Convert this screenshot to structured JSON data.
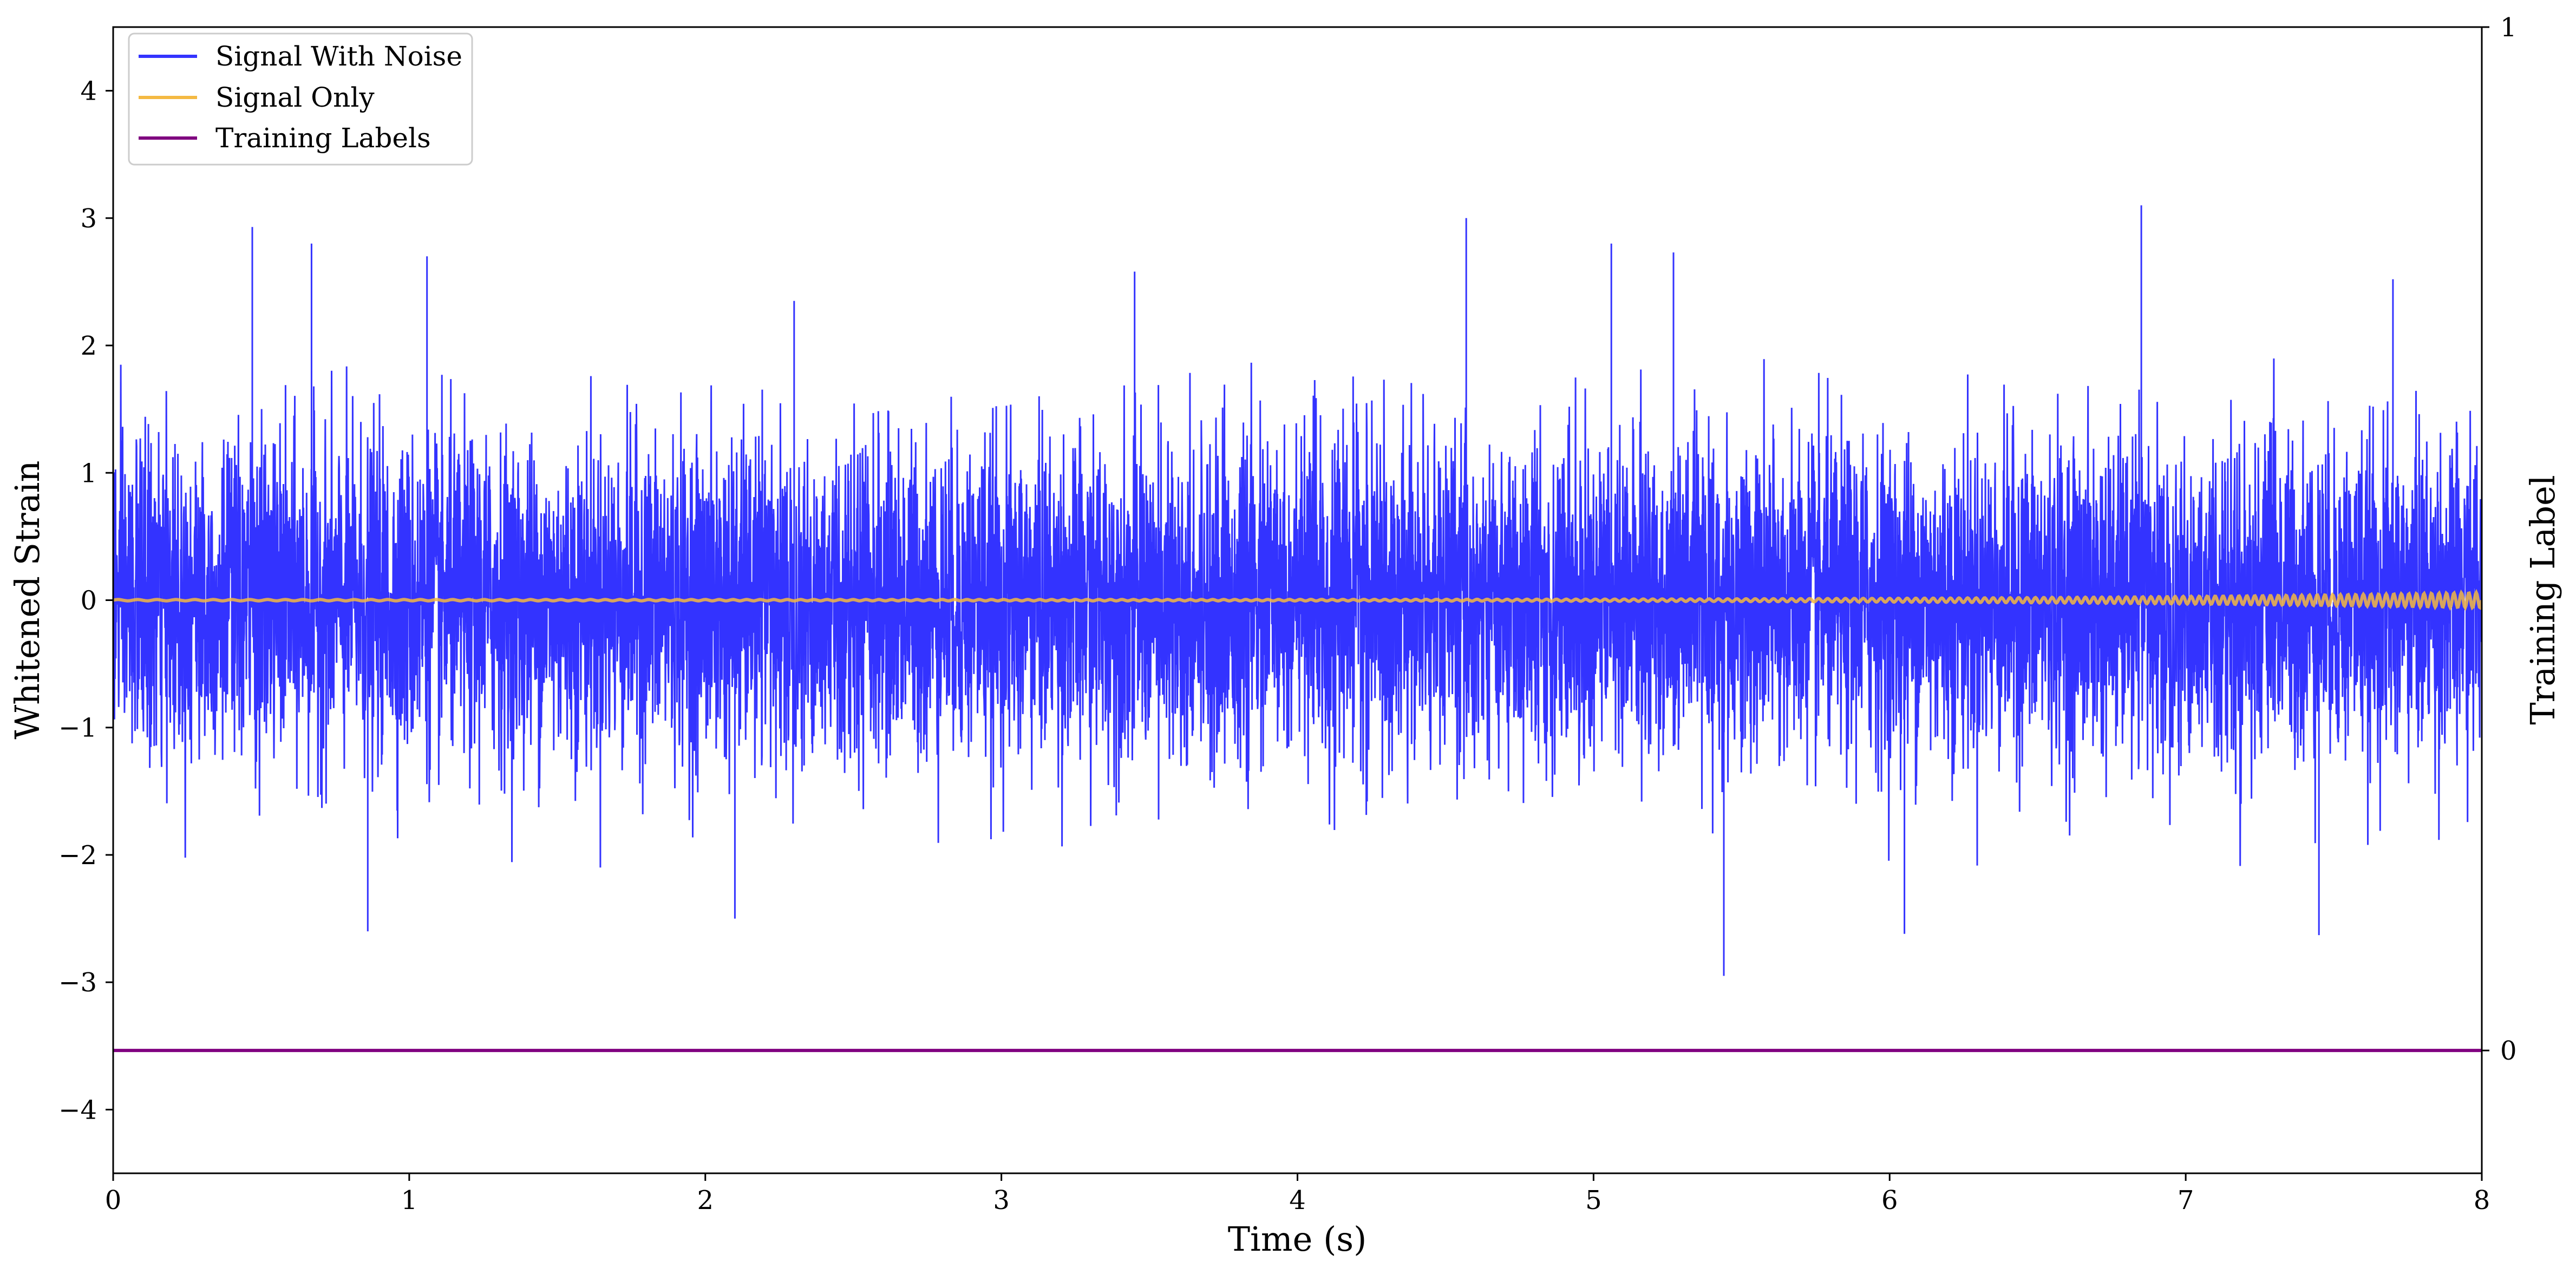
{
  "chart_data": {
    "type": "line",
    "xlabel": "Time (s)",
    "ylabel": "Whitened Strain",
    "ylabel_right": "Training Label",
    "xlim": [
      0,
      8
    ],
    "ylim": [
      -4.5,
      4.5
    ],
    "ylim_right": [
      -0.12,
      1
    ],
    "x_ticks": [
      0,
      1,
      2,
      3,
      4,
      5,
      6,
      7,
      8
    ],
    "y_ticks": [
      -4,
      -3,
      -2,
      -1,
      0,
      1,
      2,
      3,
      4
    ],
    "y_ticks_right": [
      0,
      1
    ],
    "grid": false,
    "legend": {
      "placement": "top-left",
      "entries": [
        "Signal With Noise",
        "Signal Only",
        "Training Labels"
      ]
    },
    "series": [
      {
        "name": "Signal With Noise",
        "color": "#3333ff",
        "axis": "left",
        "sample_rate_hz": 2048,
        "envelope": {
          "typical_upper": 1.4,
          "typical_lower": -1.5
        },
        "peaks": [
          {
            "x": 0.47,
            "y": 2.93
          },
          {
            "x": 0.67,
            "y": 2.8
          },
          {
            "x": 1.06,
            "y": 2.7
          },
          {
            "x": 2.3,
            "y": 2.35
          },
          {
            "x": 3.45,
            "y": 2.58
          },
          {
            "x": 4.57,
            "y": 3.0
          },
          {
            "x": 5.06,
            "y": 2.8
          },
          {
            "x": 5.27,
            "y": 2.73
          },
          {
            "x": 6.85,
            "y": 3.1
          },
          {
            "x": 7.7,
            "y": 2.52
          }
        ],
        "troughs": [
          {
            "x": 0.86,
            "y": -2.6
          },
          {
            "x": 2.1,
            "y": -2.5
          },
          {
            "x": 5.44,
            "y": -2.95
          },
          {
            "x": 6.05,
            "y": -2.62
          },
          {
            "x": 7.45,
            "y": -2.63
          }
        ]
      },
      {
        "name": "Signal Only",
        "color": "#f4b942",
        "axis": "left",
        "description_values": {
          "amplitude_start": 0.005,
          "amplitude_end": 0.06,
          "frequency_start_hz": 15,
          "frequency_end_hz": 40
        }
      },
      {
        "name": "Training Labels",
        "color": "#800080",
        "axis": "right",
        "x": [
          0,
          8
        ],
        "y": [
          0,
          0
        ]
      }
    ]
  }
}
